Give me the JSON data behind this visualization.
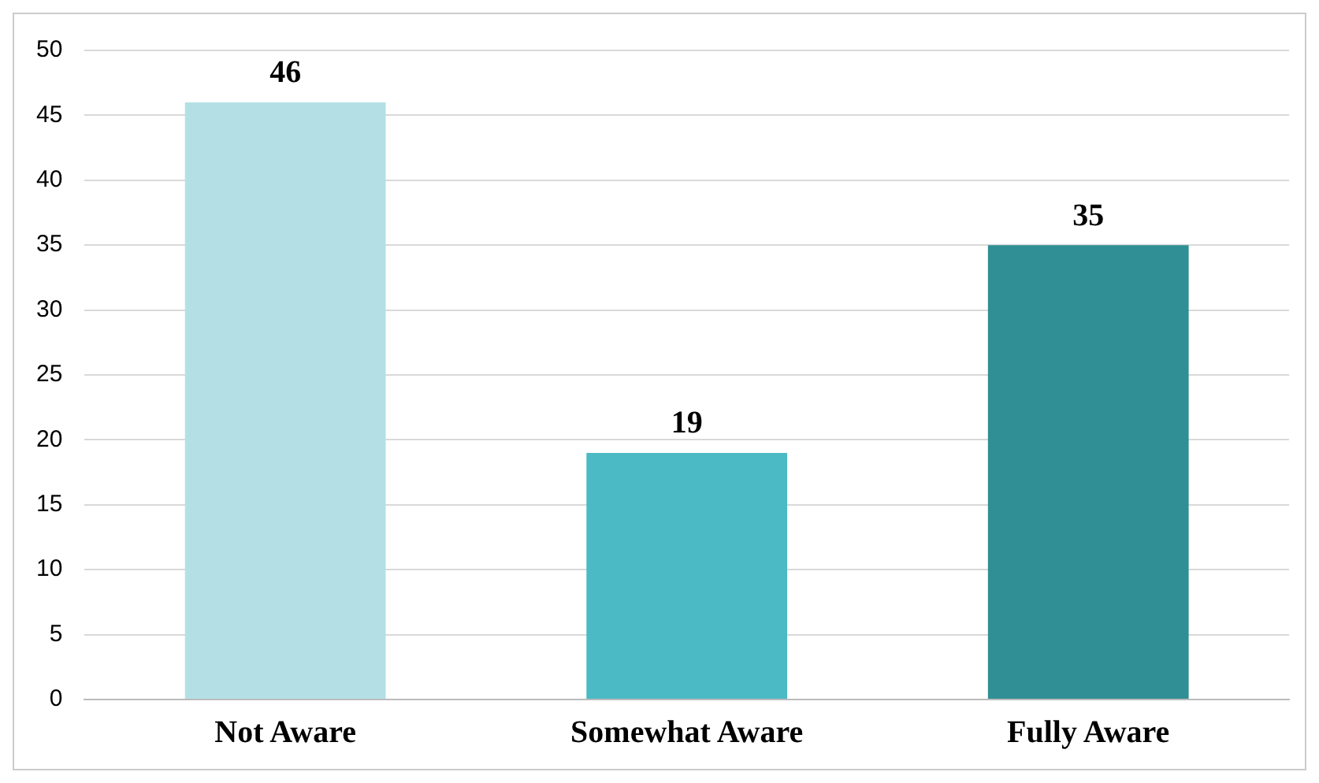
{
  "chart_data": {
    "type": "bar",
    "categories": [
      "Not Aware",
      "Somewhat Aware",
      "Fully Aware"
    ],
    "values": [
      46,
      19,
      35
    ],
    "colors": [
      "#b4e0e5",
      "#4bbac4",
      "#2f8f94"
    ],
    "ylim": [
      0,
      50
    ],
    "yticks": [
      0,
      5,
      10,
      15,
      20,
      25,
      30,
      35,
      40,
      45,
      50
    ],
    "grid": "y",
    "data_labels": true,
    "legend": false
  }
}
